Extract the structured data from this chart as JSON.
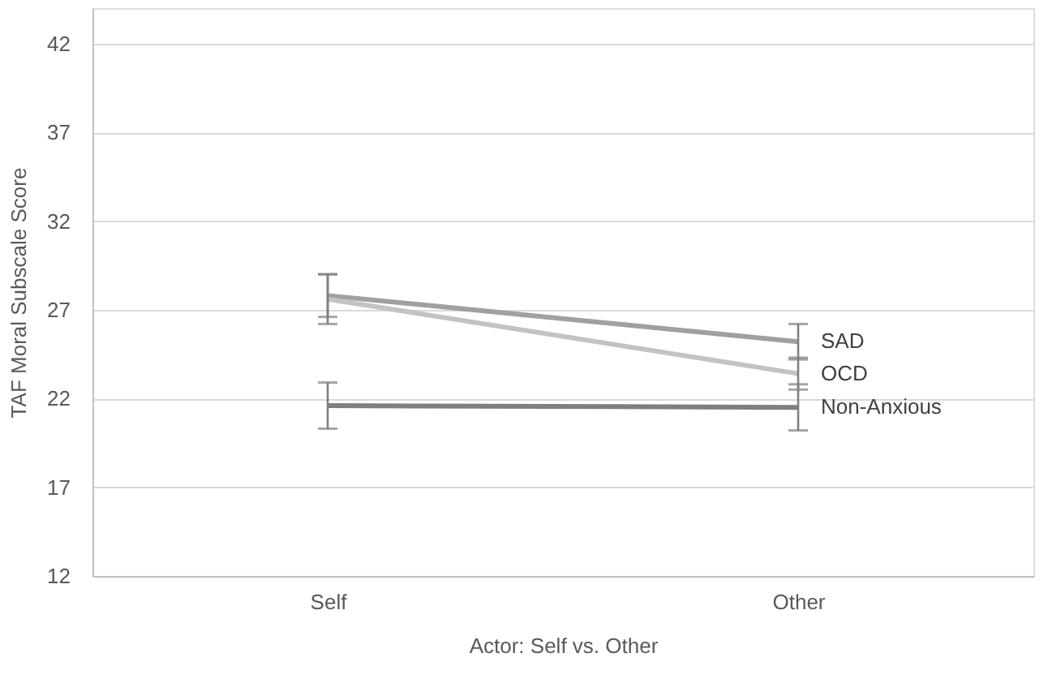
{
  "chart_data": {
    "type": "line",
    "xlabel": "Actor: Self vs. Other",
    "ylabel": "TAF Moral Subscale Score",
    "categories": [
      "Self",
      "Other"
    ],
    "series": [
      {
        "name": "SAD",
        "color": "#a0a0a0",
        "values": [
          27.8,
          25.2
        ],
        "errors": [
          1.2,
          1.0
        ]
      },
      {
        "name": "OCD",
        "color": "#c3c3c3",
        "values": [
          27.6,
          23.4
        ],
        "errors": [
          1.4,
          0.9
        ]
      },
      {
        "name": "Non-Anxious",
        "color": "#7f7f7f",
        "values": [
          21.6,
          21.5
        ],
        "errors": [
          1.3,
          1.3
        ]
      }
    ],
    "ylim": [
      12,
      44
    ],
    "yticks": [
      12,
      17,
      22,
      27,
      32,
      37,
      42
    ],
    "grid": "y",
    "legend": false,
    "marker": "none",
    "line_style": "solid"
  }
}
